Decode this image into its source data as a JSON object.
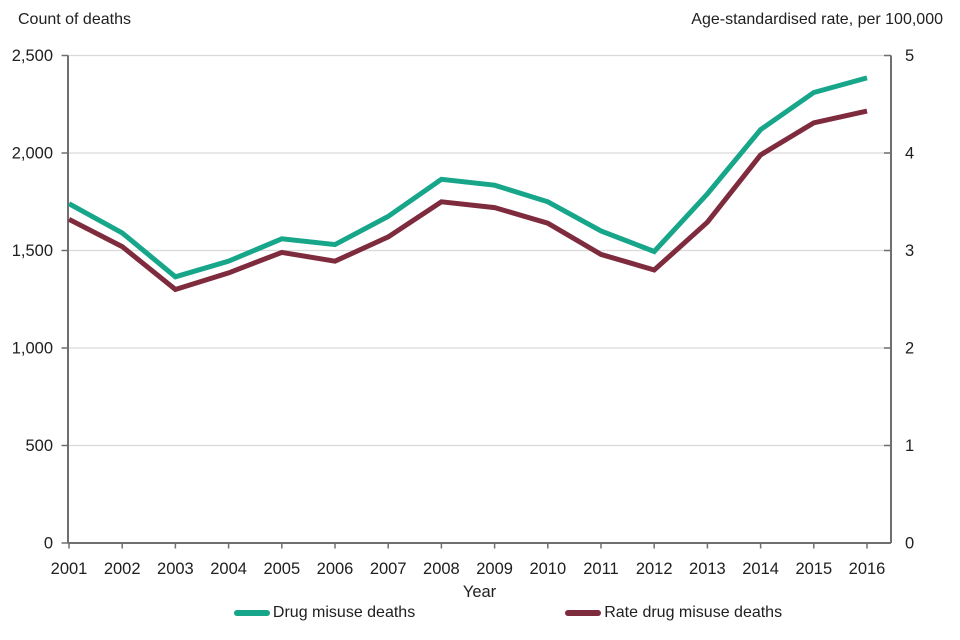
{
  "titles": {
    "left": "Count of deaths",
    "right": "Age-standardised rate, per 100,000"
  },
  "x_axis": {
    "label": "Year"
  },
  "axes": {
    "left_tick_labels": [
      "2,500",
      "2,000",
      "1,500",
      "1,000",
      "500",
      "0"
    ],
    "right_tick_labels": [
      "5",
      "4",
      "3",
      "2",
      "1",
      "0"
    ],
    "year_labels": [
      "2001",
      "2002",
      "2003",
      "2004",
      "2005",
      "2006",
      "2007",
      "2008",
      "2009",
      "2010",
      "2011",
      "2012",
      "2013",
      "2014",
      "2015",
      "2016"
    ]
  },
  "legend": {
    "items": [
      {
        "label": "Drug misuse deaths",
        "color": "#17A68A"
      },
      {
        "label": "Rate drug misuse deaths",
        "color": "#7E2B3E"
      }
    ]
  },
  "colors": {
    "series_count": "#17A68A",
    "series_rate": "#7E2B3E",
    "gridline": "#D9D9D9",
    "axis": "#6F6F6F",
    "text": "#202020"
  },
  "chart_data": {
    "type": "line",
    "x": [
      2001,
      2002,
      2003,
      2004,
      2005,
      2006,
      2007,
      2008,
      2009,
      2010,
      2011,
      2012,
      2013,
      2014,
      2015,
      2016
    ],
    "series": [
      {
        "name": "Drug misuse deaths",
        "axis": "left",
        "color": "#17A68A",
        "values": [
          1740,
          1590,
          1365,
          1445,
          1560,
          1530,
          1675,
          1865,
          1835,
          1750,
          1600,
          1495,
          1790,
          2120,
          2310,
          2385
        ]
      },
      {
        "name": "Rate drug misuse deaths",
        "axis": "right",
        "color": "#7E2B3E",
        "values": [
          3.32,
          3.04,
          2.6,
          2.77,
          2.98,
          2.89,
          3.14,
          3.5,
          3.44,
          3.28,
          2.96,
          2.8,
          3.29,
          3.98,
          4.31,
          4.43
        ]
      }
    ],
    "left_axis": {
      "title": "Count of deaths",
      "range": [
        0,
        2500
      ],
      "tick_interval": 500
    },
    "right_axis": {
      "title": "Age-standardised rate, per 100,000",
      "range": [
        0,
        5
      ],
      "tick_interval": 1
    },
    "xlabel": "Year",
    "grid": true,
    "legend_position": "bottom"
  }
}
